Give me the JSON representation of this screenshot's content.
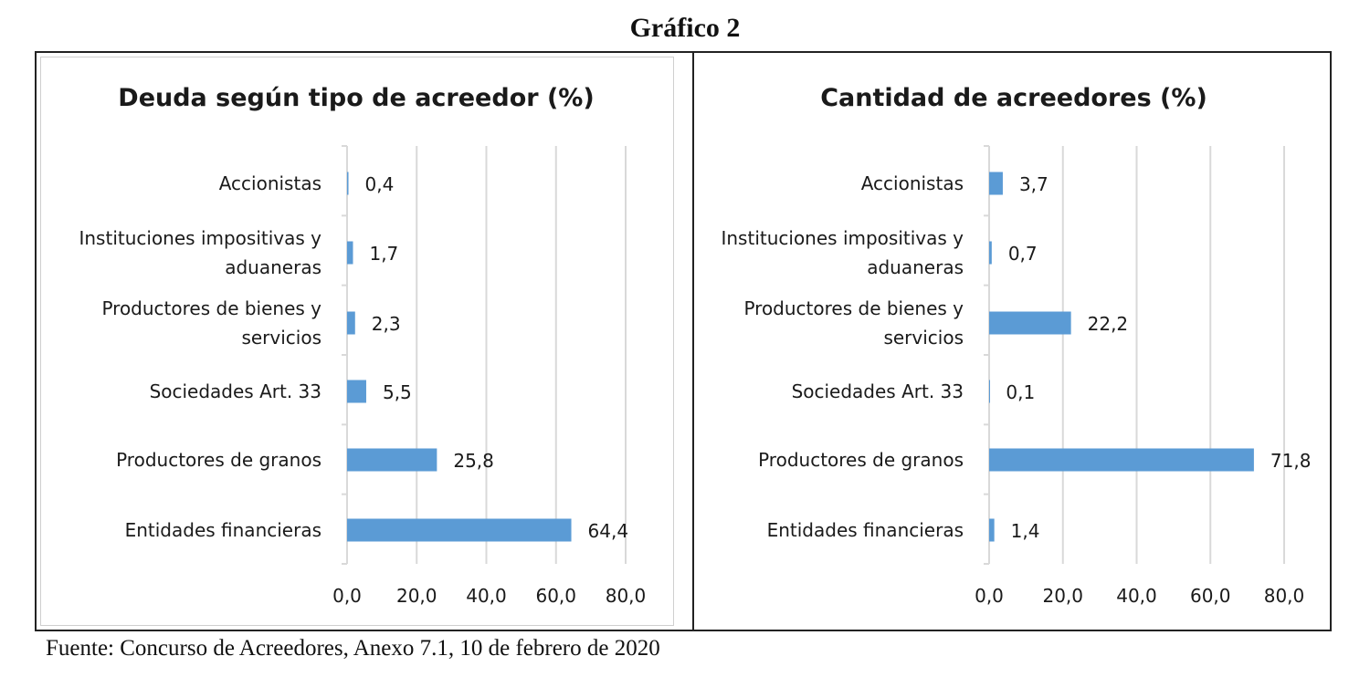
{
  "figure_title": "Gráfico 2",
  "source": "Fuente: Concurso de Acreedores, Anexo 7.1, 10 de febrero de 2020",
  "colors": {
    "bar": "#5b9bd5",
    "grid": "#d9d9d9",
    "text": "#1a1a1a"
  },
  "chart_data": [
    {
      "type": "bar",
      "orientation": "horizontal",
      "title": "Deuda según tipo de acreedor (%)",
      "categories": [
        [
          "Accionistas"
        ],
        [
          "Instituciones impositivas y",
          "aduaneras"
        ],
        [
          "Productores de bienes y",
          "servicios"
        ],
        [
          "Sociedades Art. 33"
        ],
        [
          "Productores de granos"
        ],
        [
          "Entidades financieras"
        ]
      ],
      "values": [
        0.4,
        1.7,
        2.3,
        5.5,
        25.8,
        64.4
      ],
      "data_labels": [
        "0,4",
        "1,7",
        "2,3",
        "5,5",
        "25,8",
        "64,4"
      ],
      "xlim": [
        0,
        80
      ],
      "ticks": [
        0,
        20,
        40,
        60,
        80
      ],
      "tick_labels": [
        "0,0",
        "20,0",
        "40,0",
        "60,0",
        "80,0"
      ],
      "grid": true,
      "legend": "none"
    },
    {
      "type": "bar",
      "orientation": "horizontal",
      "title": "Cantidad de acreedores (%)",
      "categories": [
        [
          "Accionistas"
        ],
        [
          "Instituciones impositivas y",
          "aduaneras"
        ],
        [
          "Productores de bienes y",
          "servicios"
        ],
        [
          "Sociedades Art. 33"
        ],
        [
          "Productores de granos"
        ],
        [
          "Entidades financieras"
        ]
      ],
      "values": [
        3.7,
        0.7,
        22.2,
        0.1,
        71.8,
        1.4
      ],
      "data_labels": [
        "3,7",
        "0,7",
        "22,2",
        "0,1",
        "71,8",
        "1,4"
      ],
      "xlim": [
        0,
        80
      ],
      "ticks": [
        0,
        20,
        40,
        60,
        80
      ],
      "tick_labels": [
        "0,0",
        "20,0",
        "40,0",
        "60,0",
        "80,0"
      ],
      "grid": true,
      "legend": "none"
    }
  ]
}
